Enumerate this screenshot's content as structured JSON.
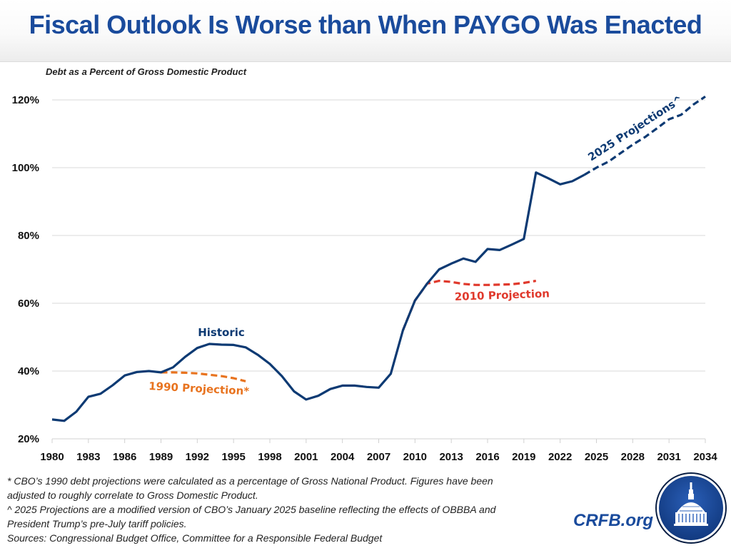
{
  "header": {
    "title": "Fiscal Outlook Is Worse than When PAYGO Was Enacted"
  },
  "chart_data": {
    "type": "line",
    "title": "Fiscal Outlook Is Worse than When PAYGO Was Enacted",
    "subtitle": "Debt as a Percent of Gross Domestic Product",
    "xlabel": "",
    "ylabel": "",
    "xlim": [
      1980,
      2034
    ],
    "ylim": [
      20,
      120
    ],
    "grid": true,
    "x_ticks": [
      "1980",
      "1983",
      "1986",
      "1989",
      "1992",
      "1995",
      "1998",
      "2001",
      "2004",
      "2007",
      "2010",
      "2013",
      "2016",
      "2019",
      "2022",
      "2025",
      "2028",
      "2031",
      "2034"
    ],
    "y_ticks": [
      "20%",
      "40%",
      "60%",
      "80%",
      "100%",
      "120%"
    ],
    "y_tick_values": [
      20,
      40,
      60,
      80,
      100,
      120
    ],
    "series": [
      {
        "name": "Historic",
        "label": "Historic",
        "color": "#0d3a73",
        "style": "solid",
        "x": [
          1980,
          1981,
          1982,
          1983,
          1984,
          1985,
          1986,
          1987,
          1988,
          1989,
          1990,
          1991,
          1992,
          1993,
          1994,
          1995,
          1996,
          1997,
          1998,
          1999,
          2000,
          2001,
          2002,
          2003,
          2004,
          2005,
          2006,
          2007,
          2008,
          2009,
          2010,
          2011,
          2012,
          2013,
          2014,
          2015,
          2016,
          2017,
          2018,
          2019,
          2020,
          2021,
          2022,
          2023,
          2024
        ],
        "values": [
          25.7,
          25.3,
          28.0,
          32.4,
          33.3,
          35.8,
          38.7,
          39.7,
          40.0,
          39.6,
          41.1,
          44.2,
          46.8,
          48.0,
          47.8,
          47.7,
          47.0,
          44.8,
          42.1,
          38.5,
          34.0,
          31.6,
          32.7,
          34.7,
          35.7,
          35.7,
          35.3,
          35.1,
          39.2,
          52.0,
          60.8,
          65.8,
          70.0,
          71.7,
          73.2,
          72.2,
          76.0,
          75.7,
          77.3,
          79.0,
          98.6,
          96.9,
          95.1,
          96.0,
          97.9
        ]
      },
      {
        "name": "1990 Projection*",
        "label": "1990 Projection*",
        "color": "#e8731f",
        "style": "dashed",
        "x": [
          1989,
          1990,
          1991,
          1992,
          1993,
          1994,
          1995,
          1996
        ],
        "values": [
          39.6,
          39.6,
          39.5,
          39.3,
          38.9,
          38.5,
          37.9,
          37.0
        ]
      },
      {
        "name": "2010 Projection",
        "label": "2010 Projection",
        "color": "#e0392c",
        "style": "dashed",
        "x": [
          2009,
          2010,
          2011,
          2012,
          2013,
          2014,
          2015,
          2016,
          2017,
          2018,
          2019,
          2020
        ],
        "values": [
          52.0,
          60.8,
          65.8,
          66.6,
          66.3,
          65.7,
          65.4,
          65.4,
          65.5,
          65.6,
          66.0,
          66.6
        ]
      },
      {
        "name": "2025 Projections^",
        "label": "2025 Projections^",
        "color": "#0d3a73",
        "style": "dashed",
        "x": [
          2024,
          2025,
          2026,
          2027,
          2028,
          2029,
          2030,
          2031,
          2032,
          2033,
          2034
        ],
        "values": [
          97.9,
          100.0,
          101.8,
          104.3,
          106.8,
          109.0,
          111.6,
          114.3,
          115.6,
          118.6,
          121.0
        ]
      }
    ]
  },
  "footnotes": [
    "* CBO’s 1990 debt projections were calculated as a percentage of Gross National Product. Figures have been",
    "adjusted to roughly correlate to Gross Domestic Product.",
    "^ 2025 Projections are a modified version of CBO’s January 2025 baseline reflecting the effects of OBBBA and",
    "President Trump’s pre-July tariff policies.",
    "Sources: Congressional Budget Office, Committee for a Responsible Federal Budget"
  ],
  "branding": {
    "site": "CRFB.org",
    "logo_icon": "capitol-dome-icon",
    "logo_color": "#1e4a9a"
  }
}
